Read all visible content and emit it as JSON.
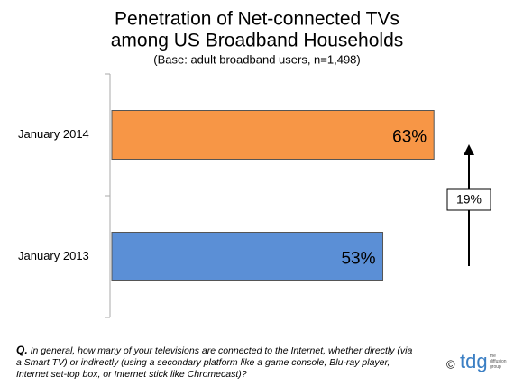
{
  "chart_data": {
    "type": "hbar",
    "title": [
      "Penetration of Net-connected TVs",
      "among US Broadband Households"
    ],
    "subtitle": "(Base: adult broadband users, n=1,498)",
    "categories": [
      "January 2014",
      "January 2013"
    ],
    "values": [
      63,
      53
    ],
    "value_labels": [
      "63%",
      "53%"
    ],
    "colors": [
      "#f79646",
      "#5b8fd6"
    ],
    "annotation": "19%",
    "note_prefix": "Q.",
    "note": "In general, how many of your televisions are connected to the Internet, whether directly (via a Smart TV) or indirectly (using a secondary platform like a game console, Blu-ray player, Internet set-top box, or Internet stick like Chromecast)?",
    "copyright": "©",
    "logo_text": "tdg",
    "logo_subtext": "the diffusion group"
  }
}
